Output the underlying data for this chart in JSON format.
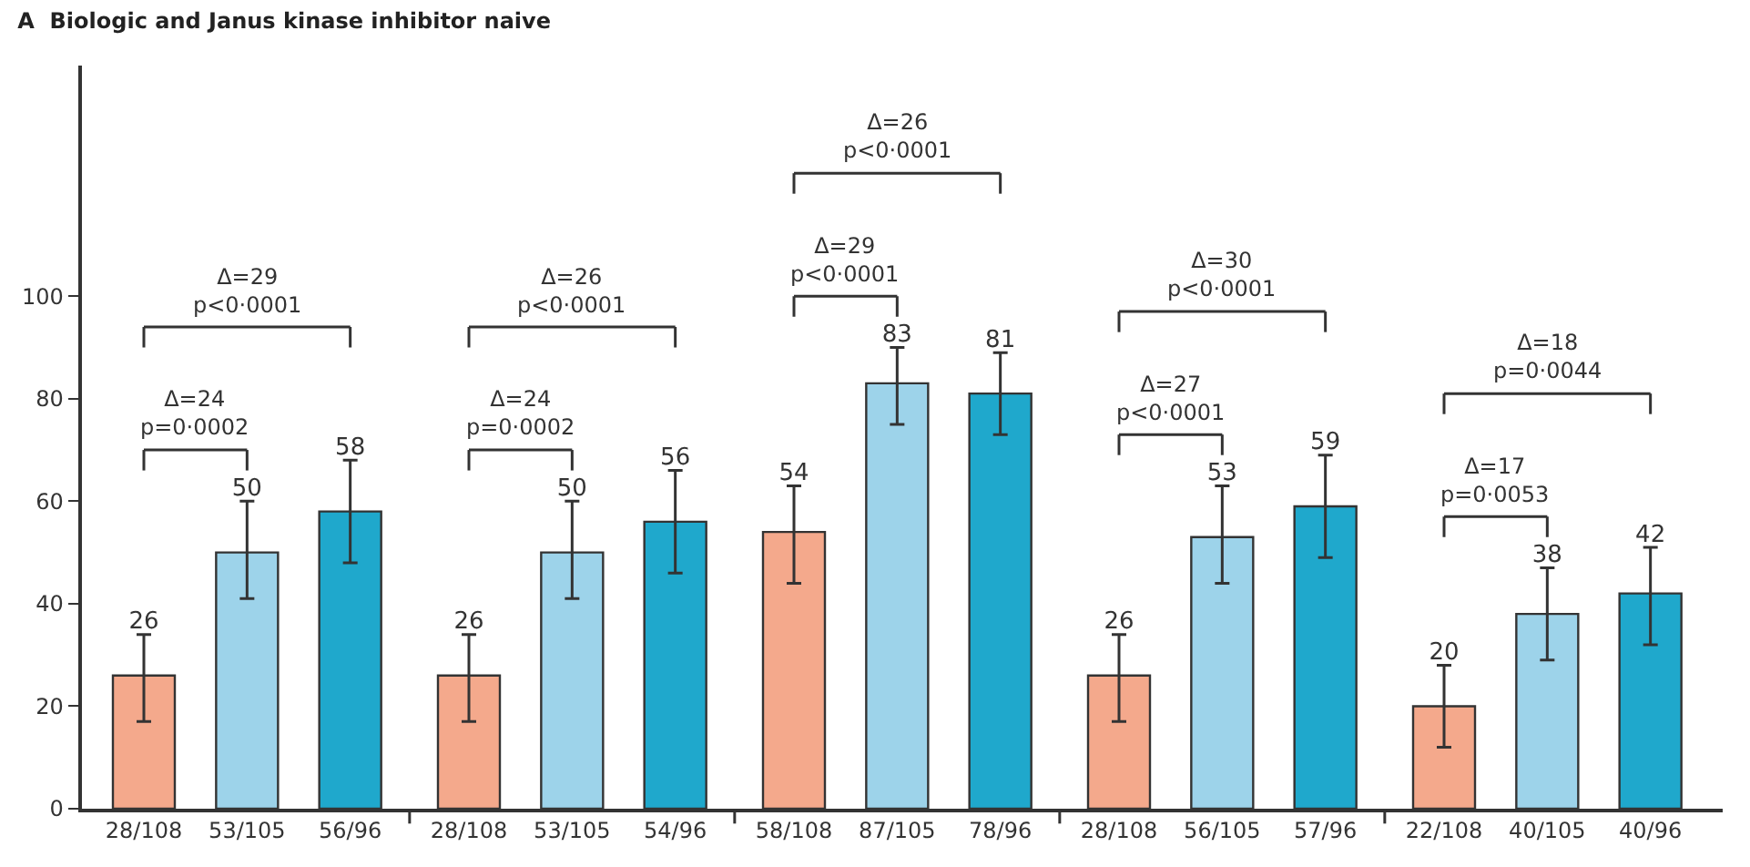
{
  "chart_data": {
    "type": "bar",
    "title": "A  Biologic and Janus kinase inhibitor naive",
    "categories": [
      "28/108",
      "53/105",
      "56/96",
      "28/108",
      "53/105",
      "54/96",
      "58/108",
      "87/105",
      "78/96",
      "28/108",
      "56/105",
      "57/96",
      "22/108",
      "40/105",
      "40/96"
    ],
    "values": [
      26,
      50,
      58,
      26,
      50,
      56,
      54,
      83,
      81,
      26,
      53,
      59,
      20,
      38,
      42
    ],
    "colors": [
      "#f4a98c",
      "#9dd3ea",
      "#1fa8cc",
      "#f4a98c",
      "#9dd3ea",
      "#1fa8cc",
      "#f4a98c",
      "#9dd3ea",
      "#1fa8cc",
      "#f4a98c",
      "#9dd3ea",
      "#1fa8cc",
      "#f4a98c",
      "#9dd3ea",
      "#1fa8cc"
    ],
    "errors": [
      [
        17,
        34
      ],
      [
        41,
        60
      ],
      [
        48,
        68
      ],
      [
        17,
        34
      ],
      [
        41,
        60
      ],
      [
        46,
        66
      ],
      [
        44,
        63
      ],
      [
        75,
        90
      ],
      [
        73,
        89
      ],
      [
        17,
        34
      ],
      [
        44,
        63
      ],
      [
        49,
        69
      ],
      [
        12,
        28
      ],
      [
        29,
        47
      ],
      [
        32,
        51
      ]
    ],
    "data_labels": true,
    "ylim": [
      0,
      145
    ],
    "yticks": [
      0,
      20,
      40,
      60,
      80,
      100
    ],
    "annotations": [
      "Δ=24\np=0·0002",
      "Δ=29\np<0·0001",
      "Δ=24\np=0·0002",
      "Δ=26\np<0·0001",
      "Δ=29\np<0·0001",
      "Δ=26\np<0·0001",
      "Δ=27\np<0·0001",
      "Δ=30\np<0·0001",
      "Δ=17\np=0·0053",
      "Δ=18\np=0·0044"
    ]
  }
}
